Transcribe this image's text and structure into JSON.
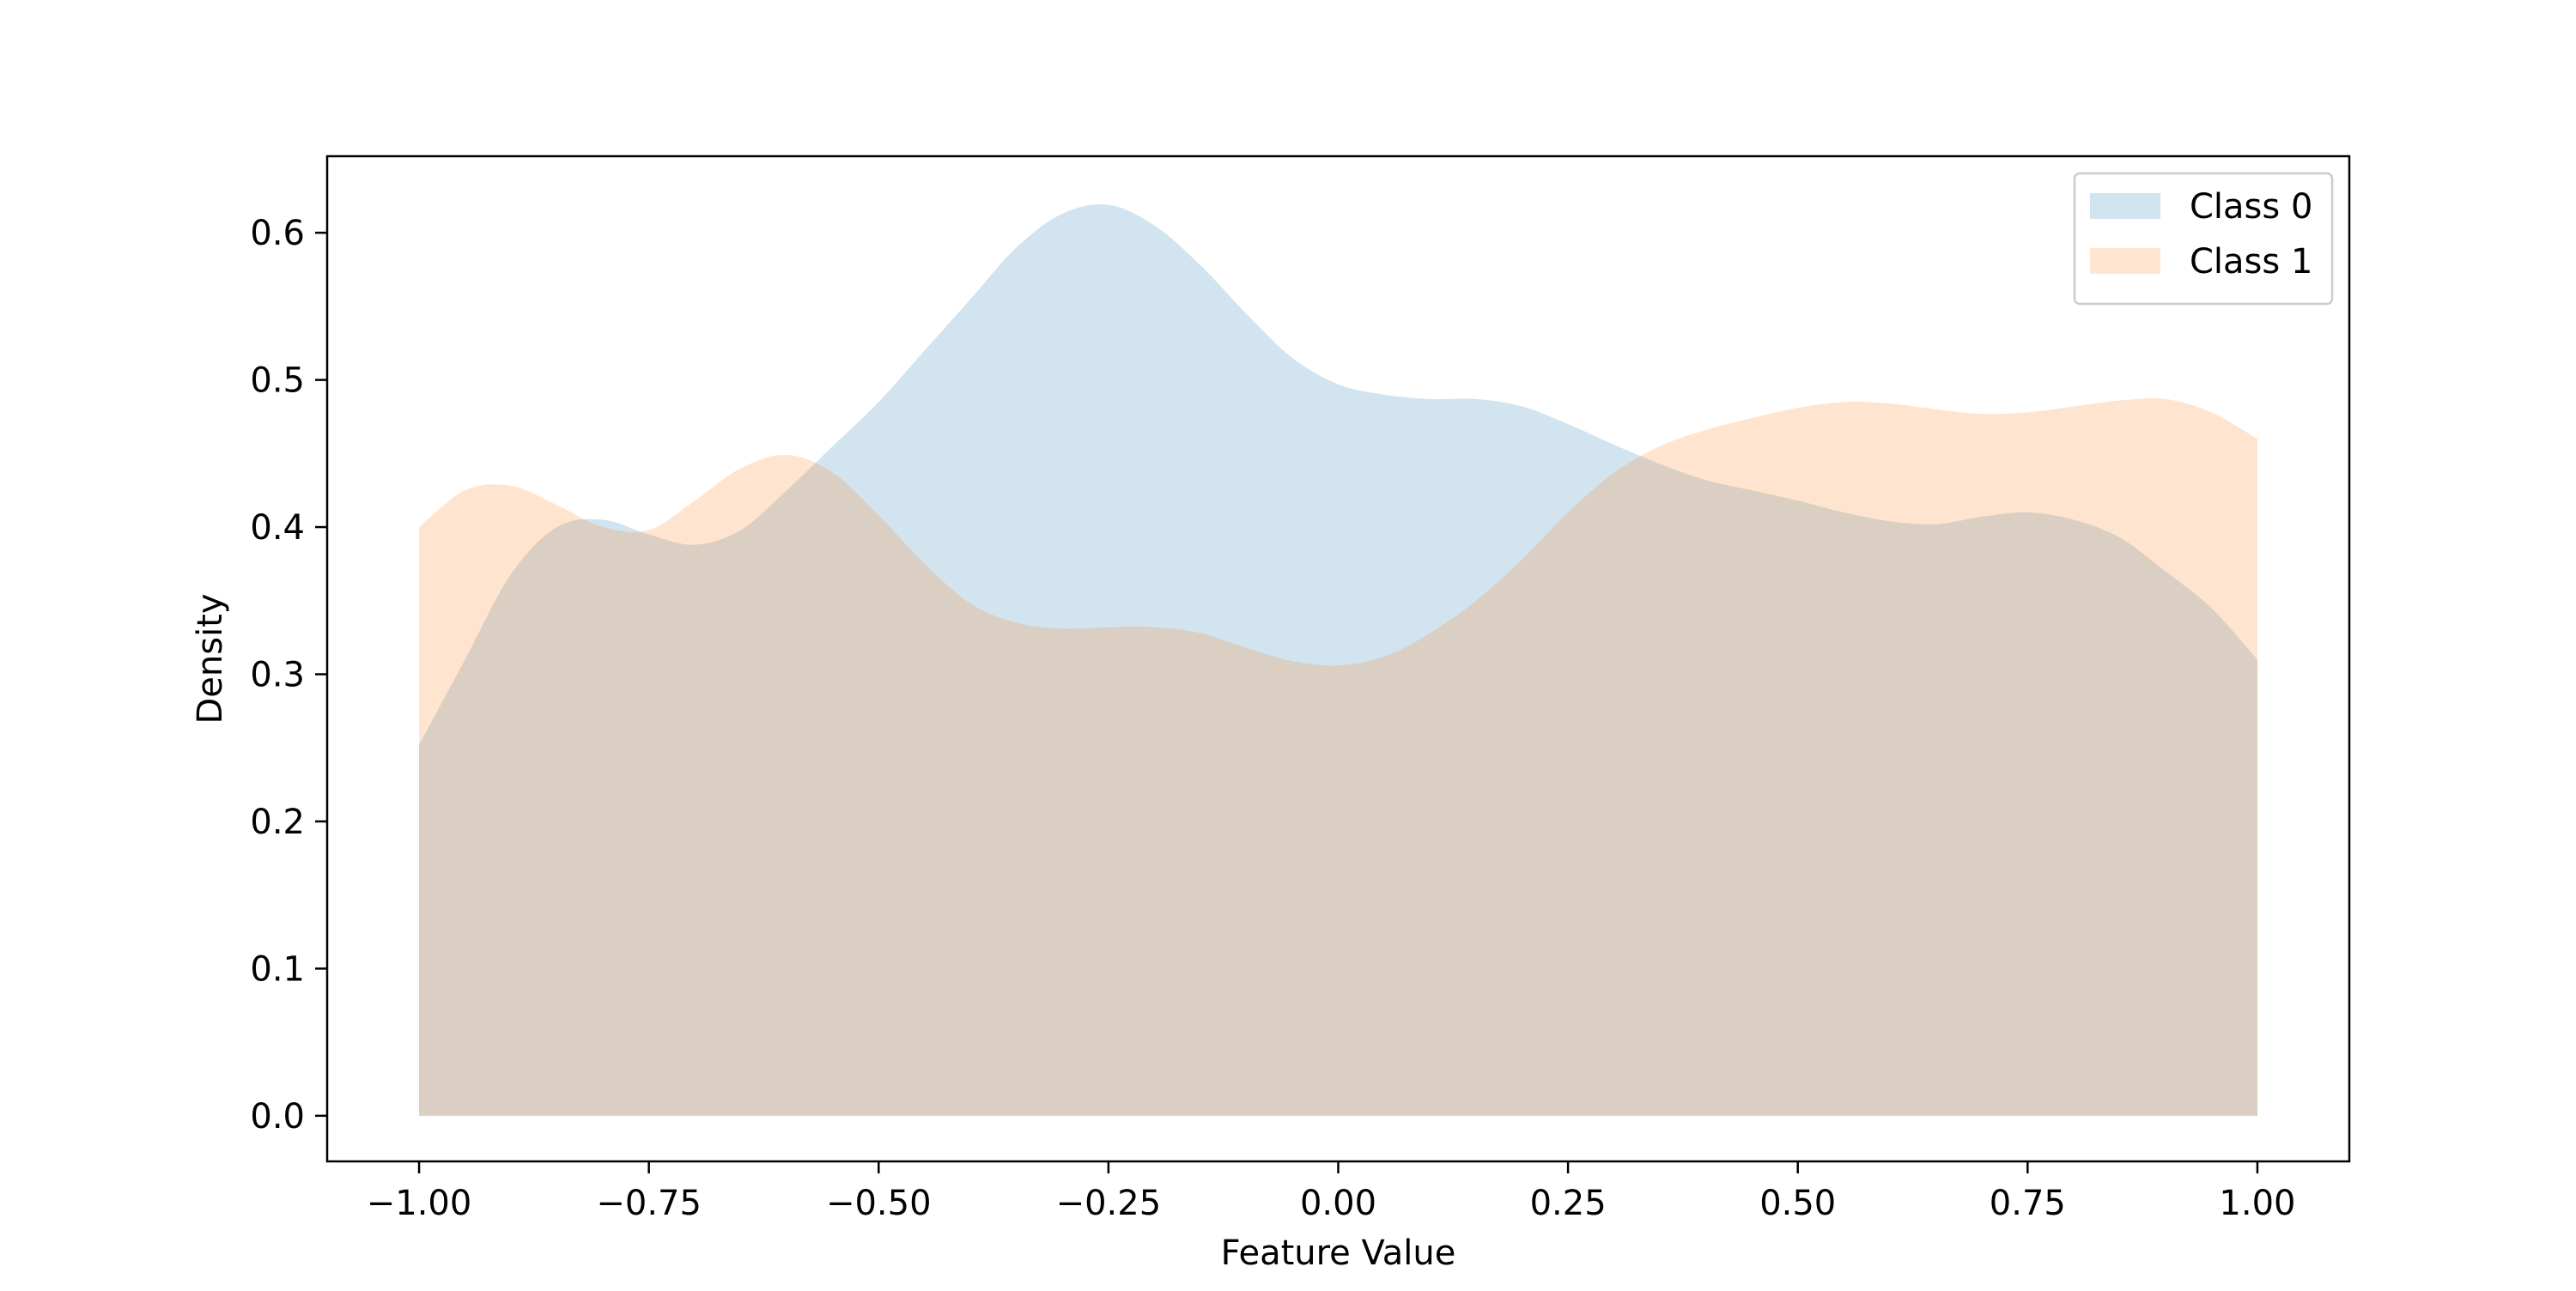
{
  "chart_data": {
    "type": "area",
    "title": "",
    "xlabel": "Feature Value",
    "ylabel": "Density",
    "xlim": [
      -1.1,
      1.1
    ],
    "ylim": [
      -0.031,
      0.652
    ],
    "xticks": [
      -1.0,
      -0.75,
      -0.5,
      -0.25,
      0.0,
      0.25,
      0.5,
      0.75,
      1.0
    ],
    "xtick_labels": [
      "−1.00",
      "−0.75",
      "−0.50",
      "−0.25",
      "0.00",
      "0.25",
      "0.50",
      "0.75",
      "1.00"
    ],
    "yticks": [
      0.0,
      0.1,
      0.2,
      0.3,
      0.4,
      0.5,
      0.6
    ],
    "ytick_labels": [
      "0.0",
      "0.1",
      "0.2",
      "0.3",
      "0.4",
      "0.5",
      "0.6"
    ],
    "grid": false,
    "legend_position": "top-right",
    "series": [
      {
        "name": "Class 0",
        "color": "#1f77b4",
        "alpha": 0.2,
        "x": [
          -1.0,
          -0.95,
          -0.9,
          -0.85,
          -0.8,
          -0.75,
          -0.7,
          -0.65,
          -0.6,
          -0.55,
          -0.5,
          -0.45,
          -0.4,
          -0.35,
          -0.3,
          -0.25,
          -0.2,
          -0.15,
          -0.1,
          -0.05,
          0.0,
          0.05,
          0.1,
          0.15,
          0.2,
          0.25,
          0.3,
          0.35,
          0.4,
          0.45,
          0.5,
          0.55,
          0.6,
          0.65,
          0.7,
          0.75,
          0.8,
          0.85,
          0.9,
          0.95,
          1.0
        ],
        "y": [
          0.252,
          0.31,
          0.368,
          0.4,
          0.405,
          0.395,
          0.388,
          0.398,
          0.425,
          0.455,
          0.485,
          0.52,
          0.555,
          0.59,
          0.613,
          0.619,
          0.605,
          0.578,
          0.545,
          0.515,
          0.497,
          0.49,
          0.487,
          0.487,
          0.482,
          0.47,
          0.456,
          0.443,
          0.432,
          0.425,
          0.418,
          0.41,
          0.404,
          0.402,
          0.407,
          0.41,
          0.405,
          0.393,
          0.37,
          0.345,
          0.31
        ]
      },
      {
        "name": "Class 1",
        "color": "#ff7f0e",
        "alpha": 0.2,
        "x": [
          -1.0,
          -0.95,
          -0.9,
          -0.85,
          -0.8,
          -0.75,
          -0.7,
          -0.65,
          -0.6,
          -0.55,
          -0.5,
          -0.45,
          -0.4,
          -0.35,
          -0.3,
          -0.25,
          -0.2,
          -0.15,
          -0.1,
          -0.05,
          0.0,
          0.05,
          0.1,
          0.15,
          0.2,
          0.25,
          0.3,
          0.35,
          0.4,
          0.45,
          0.5,
          0.55,
          0.6,
          0.65,
          0.7,
          0.75,
          0.8,
          0.85,
          0.9,
          0.95,
          1.0
        ],
        "y": [
          0.4,
          0.425,
          0.428,
          0.415,
          0.4,
          0.398,
          0.418,
          0.44,
          0.449,
          0.437,
          0.408,
          0.375,
          0.348,
          0.335,
          0.331,
          0.332,
          0.332,
          0.328,
          0.318,
          0.309,
          0.306,
          0.312,
          0.328,
          0.35,
          0.378,
          0.41,
          0.437,
          0.455,
          0.466,
          0.474,
          0.481,
          0.485,
          0.484,
          0.48,
          0.477,
          0.478,
          0.482,
          0.486,
          0.487,
          0.478,
          0.46
        ]
      }
    ]
  }
}
